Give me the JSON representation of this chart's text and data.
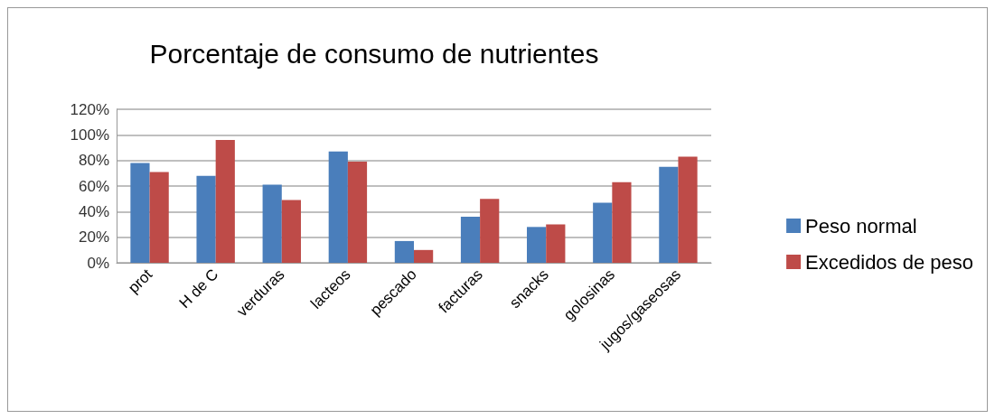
{
  "chart_data": {
    "type": "bar",
    "title": "Porcentaje de consumo de nutrientes",
    "categories": [
      "prot",
      "H de C",
      "verduras",
      "lacteos",
      "pescado",
      "facturas",
      "snacks",
      "golosinas",
      "jugos/gaseosas"
    ],
    "series": [
      {
        "name": "Peso normal",
        "color": "#4a7ebb",
        "values": [
          78,
          68,
          61,
          87,
          17,
          36,
          28,
          47,
          75
        ]
      },
      {
        "name": "Excedidos de peso",
        "color": "#be4b48",
        "values": [
          71,
          96,
          49,
          79,
          10,
          50,
          30,
          63,
          83
        ]
      }
    ],
    "ylim": [
      0,
      120
    ],
    "yticks": [
      {
        "value": 0,
        "label": "0%"
      },
      {
        "value": 20,
        "label": "20%"
      },
      {
        "value": 40,
        "label": "40%"
      },
      {
        "value": 60,
        "label": "60%"
      },
      {
        "value": 80,
        "label": "80%"
      },
      {
        "value": 100,
        "label": "100%"
      },
      {
        "value": 120,
        "label": "120%"
      }
    ],
    "grid": "y",
    "legend": "right"
  }
}
